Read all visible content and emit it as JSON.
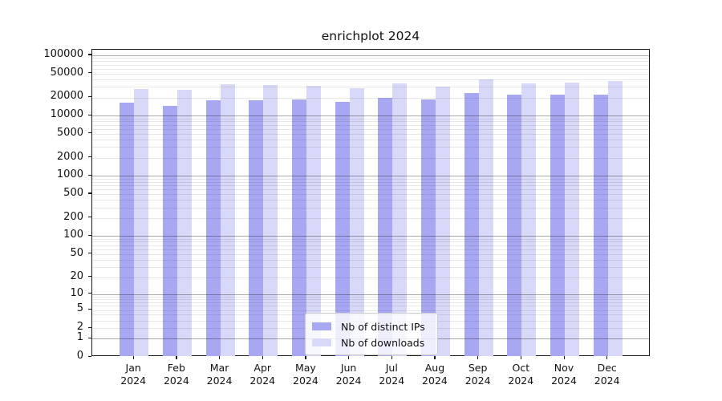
{
  "chart_data": {
    "type": "bar",
    "title": "enrichplot 2024",
    "categories": [
      "Jan 2024",
      "Feb 2024",
      "Mar 2024",
      "Apr 2024",
      "May 2024",
      "Jun 2024",
      "Jul 2024",
      "Aug 2024",
      "Sep 2024",
      "Oct 2024",
      "Nov 2024",
      "Dec 2024"
    ],
    "series": [
      {
        "name": "Nb of distinct IPs",
        "color": "#a8a8f2",
        "values": [
          16400,
          14400,
          18000,
          18000,
          18700,
          17100,
          19900,
          18700,
          24000,
          22000,
          22000,
          22500
        ]
      },
      {
        "name": "Nb of downloads",
        "color": "#d8d8f8",
        "values": [
          27900,
          26800,
          32800,
          31800,
          30900,
          28000,
          33800,
          30600,
          40000,
          34600,
          35300,
          37600
        ]
      }
    ],
    "xlabel": "",
    "ylabel": "",
    "yscale": "log1p-symlog",
    "y_ticks": [
      0,
      1,
      2,
      5,
      10,
      20,
      50,
      100,
      200,
      500,
      1000,
      2000,
      5000,
      10000,
      20000,
      50000,
      100000
    ],
    "ylim": [
      0,
      121500
    ],
    "grid": true,
    "grid_major_decades": [
      1,
      10,
      100,
      1000,
      10000,
      100000
    ],
    "legend_position": "lower center"
  },
  "colors": {
    "major_grid": "#b0b0b0",
    "minor_grid": "#e8e8e8",
    "axis": "#1a1a1a",
    "background": "#ffffff"
  }
}
